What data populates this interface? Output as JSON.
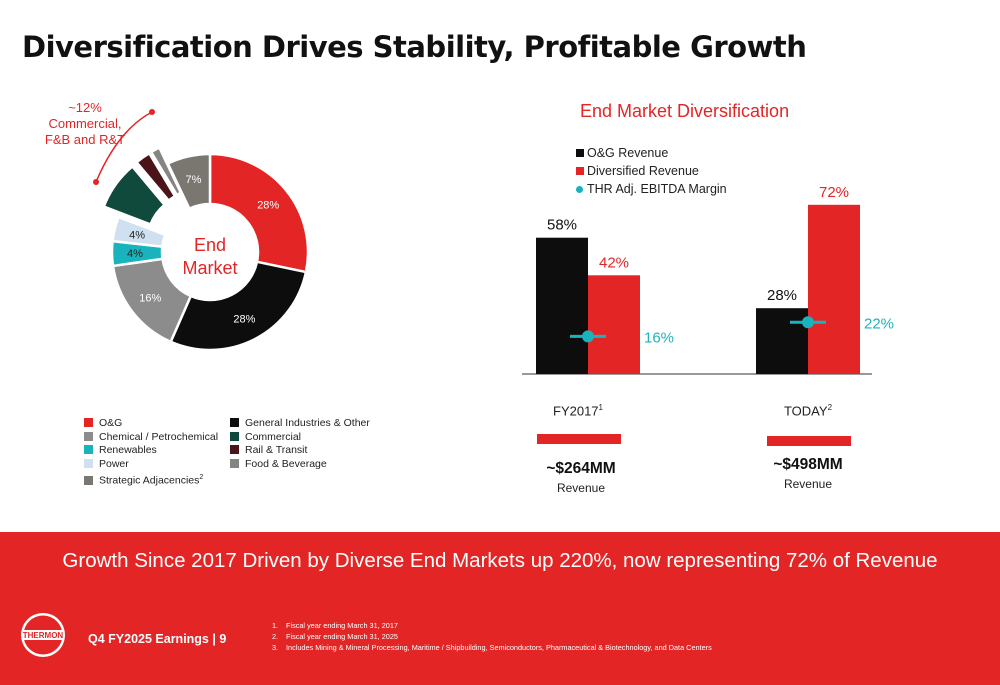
{
  "title": "Diversification Drives Stability, Profitable Growth",
  "donut": {
    "center_line1": "End",
    "center_line2": "Market",
    "callout_line1": "~12%",
    "callout_line2": "Commercial,",
    "callout_line3": "F&B and R&T"
  },
  "legend": [
    {
      "label": "O&G",
      "color": "#e32526"
    },
    {
      "label": "Chemical / Petrochemical",
      "color": "#8c8c8c"
    },
    {
      "label": "Renewables",
      "color": "#19b3be"
    },
    {
      "label": "Power",
      "color": "#cfe0f0"
    },
    {
      "label": "Strategic Adjacencies",
      "sup": "2",
      "color": "#7a7770"
    },
    {
      "label": "General Industries & Other",
      "color": "#0d0d0d"
    },
    {
      "label": "Commercial",
      "color": "#0f4a3c"
    },
    {
      "label": "Rail & Transit",
      "color": "#4a1418"
    },
    {
      "label": "Food & Beverage",
      "color": "#858581"
    }
  ],
  "chart_data": [
    {
      "type": "pie",
      "title": "End Market",
      "slices": [
        {
          "label": "O&G",
          "value": 28,
          "display": "28%",
          "color": "#e32526"
        },
        {
          "label": "General Industries & Other",
          "value": 28,
          "display": "28%",
          "color": "#0d0d0d"
        },
        {
          "label": "Chemical / Petrochemical",
          "value": 16,
          "display": "16%",
          "color": "#8c8c8c"
        },
        {
          "label": "Renewables",
          "value": 4,
          "display": "4%",
          "color": "#19b3be"
        },
        {
          "label": "Power",
          "value": 4,
          "display": "4%",
          "color": "#cfe0f0"
        },
        {
          "label": "Commercial",
          "value": 8,
          "display": "",
          "color": "#0f4a3c",
          "exploded": true
        },
        {
          "label": "Rail & Transit",
          "value": 2.5,
          "display": "",
          "color": "#4a1418",
          "exploded": true
        },
        {
          "label": "Food & Beverage",
          "value": 1.5,
          "display": "",
          "color": "#858581",
          "exploded": true
        },
        {
          "label": "Strategic Adjacencies",
          "value": 7,
          "display": "7%",
          "color": "#7a7770"
        }
      ]
    },
    {
      "type": "bar",
      "title": "End Market Diversification",
      "categories": [
        "FY2017",
        "TODAY"
      ],
      "category_sups": [
        "1",
        "2"
      ],
      "series": [
        {
          "name": "O&G Revenue",
          "values": [
            58,
            28
          ],
          "labels": [
            "58%",
            "28%"
          ],
          "color": "#0d0d0d"
        },
        {
          "name": "Diversified Revenue",
          "values": [
            42,
            72
          ],
          "labels": [
            "42%",
            "72%"
          ],
          "color": "#e32526"
        },
        {
          "name": "THR Adj. EBITDA Margin",
          "values": [
            16,
            22
          ],
          "labels": [
            "16%",
            "22%"
          ],
          "color": "#19b3be",
          "marker": "dot"
        }
      ],
      "ylim": [
        0,
        80
      ],
      "revenue": [
        {
          "value": "~$264MM",
          "label": "Revenue"
        },
        {
          "value": "~$498MM",
          "label": "Revenue"
        }
      ]
    }
  ],
  "banner": {
    "text": "Growth Since 2017 Driven by Diverse End Markets up 220%, now representing 72% of Revenue",
    "logo_text": "THERMON",
    "earnings_label": "Q4 FY2025 Earnings | 9"
  },
  "footnotes": [
    {
      "num": "1.",
      "text": "Fiscal year ending March 31, 2017"
    },
    {
      "num": "2.",
      "text": "Fiscal year ending March 31, 2025"
    },
    {
      "num": "3.",
      "text": "Includes Mining & Mineral Processing, Maritime / Shipbuilding, Semiconductors, Pharmaceutical & Biotechnology, and Data Centers"
    }
  ]
}
